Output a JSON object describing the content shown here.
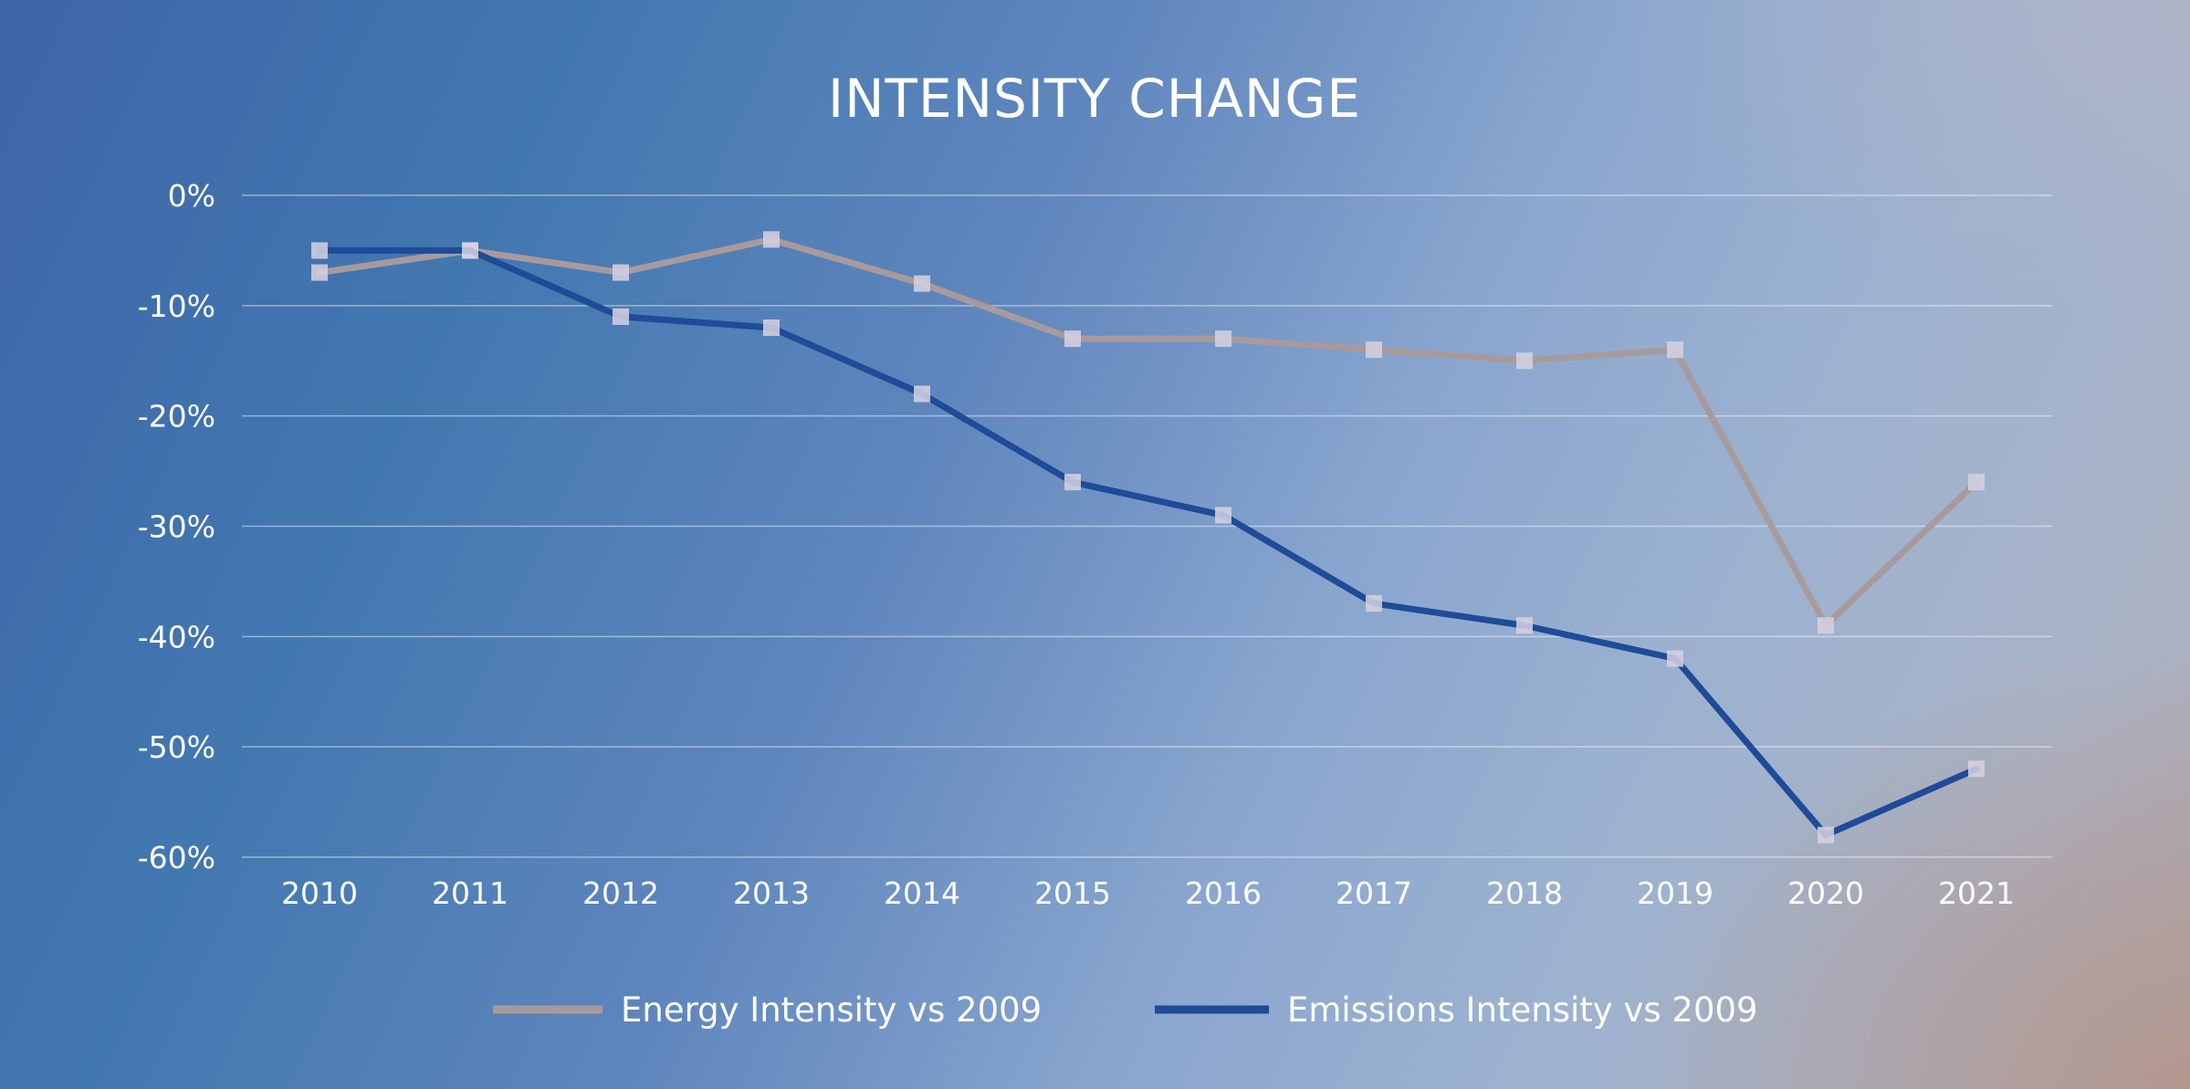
{
  "chart_data": {
    "type": "line",
    "title": "INTENSITY CHANGE",
    "xlabel": "",
    "ylabel": "",
    "categories": [
      "2010",
      "2011",
      "2012",
      "2013",
      "2014",
      "2015",
      "2016",
      "2017",
      "2018",
      "2019",
      "2020",
      "2021"
    ],
    "ylim": [
      -60,
      0
    ],
    "yticks": [
      0,
      -10,
      -20,
      -30,
      -40,
      -50,
      -60
    ],
    "ytick_labels": [
      "0%",
      "-10%",
      "-20%",
      "-30%",
      "-40%",
      "-50%",
      "-60%"
    ],
    "grid": true,
    "legend_position": "bottom",
    "series": [
      {
        "name": "Energy Intensity vs 2009",
        "color": "#a89a9c",
        "values": [
          -7,
          -5,
          -7,
          -4,
          -8,
          -13,
          -13,
          -14,
          -15,
          -14,
          -39,
          -26
        ]
      },
      {
        "name": "Emissions Intensity vs 2009",
        "color": "#1f4b98",
        "values": [
          -5,
          -5,
          -11,
          -12,
          -18,
          -26,
          -29,
          -37,
          -39,
          -42,
          -58,
          -52
        ]
      }
    ]
  }
}
